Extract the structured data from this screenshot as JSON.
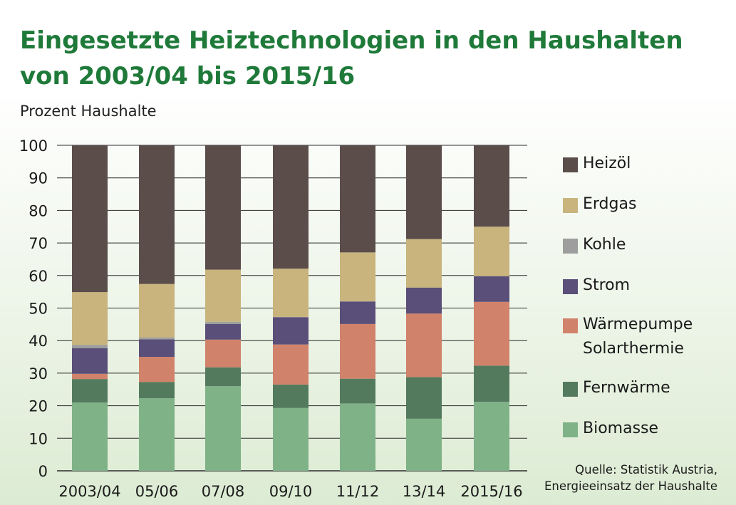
{
  "title": {
    "line1": "Eingesetzte Heiztechnologien in den Haushalten",
    "line2": "von 2003/04 bis 2015/16"
  },
  "source": {
    "line1": "Quelle: Statistik Austria,",
    "line2": "Energieeinsatz der Haushalte"
  },
  "colors": {
    "title": "#1f7a3a",
    "biomasse": "#7fb287",
    "fernwaerme": "#547a5e",
    "waermepumpe": "#d1826a",
    "strom": "#5a4f78",
    "kohle": "#9e9e9e",
    "erdgas": "#c8b47c",
    "heizoel": "#5a4d4a"
  },
  "chart_data": {
    "type": "bar",
    "stacked": true,
    "ylabel": "Prozent Haushalte",
    "ylim": [
      0,
      100
    ],
    "yticks": [
      0,
      10,
      20,
      30,
      40,
      50,
      60,
      70,
      80,
      90,
      100
    ],
    "grid": true,
    "legend_position": "right",
    "categories": [
      "2003/04",
      "05/06",
      "07/08",
      "09/10",
      "11/12",
      "13/14",
      "2015/16"
    ],
    "series": [
      {
        "name": "Biomasse",
        "color": "#7fb287",
        "values": [
          21,
          22.3,
          26,
          19.3,
          20.7,
          16,
          21.2
        ]
      },
      {
        "name": "Fernwärme",
        "color": "#547a5e",
        "values": [
          7.2,
          5,
          5.8,
          7.2,
          7.6,
          12.8,
          11.1
        ]
      },
      {
        "name": "Wärmepumpe Solarthermie",
        "color": "#d1826a",
        "values": [
          1.6,
          7.7,
          8.5,
          12.3,
          16.8,
          19.5,
          19.6
        ]
      },
      {
        "name": "Strom",
        "color": "#5a4f78",
        "values": [
          7.9,
          5.4,
          4.8,
          8.4,
          6.9,
          8,
          7.9
        ]
      },
      {
        "name": "Kohle",
        "color": "#9e9e9e",
        "values": [
          1,
          0.6,
          0.7,
          0.1,
          0.1,
          0,
          0
        ]
      },
      {
        "name": "Erdgas",
        "color": "#c8b47c",
        "values": [
          16.2,
          16.4,
          16,
          14.8,
          15,
          14.9,
          15.2
        ]
      },
      {
        "name": "Heizöl",
        "color": "#5a4d4a",
        "values": [
          45.1,
          42.6,
          38.2,
          37.9,
          32.9,
          28.8,
          25
        ]
      }
    ],
    "legend": [
      {
        "label": "Heizöl",
        "color": "#5a4d4a"
      },
      {
        "label": "Erdgas",
        "color": "#c8b47c"
      },
      {
        "label": "Kohle",
        "color": "#9e9e9e"
      },
      {
        "label": "Strom",
        "color": "#5a4f78"
      },
      {
        "label": "Wärmepumpe\nSolarthermie",
        "color": "#d1826a"
      },
      {
        "label": "Fernwärme",
        "color": "#547a5e"
      },
      {
        "label": "Biomasse",
        "color": "#7fb287"
      }
    ]
  }
}
